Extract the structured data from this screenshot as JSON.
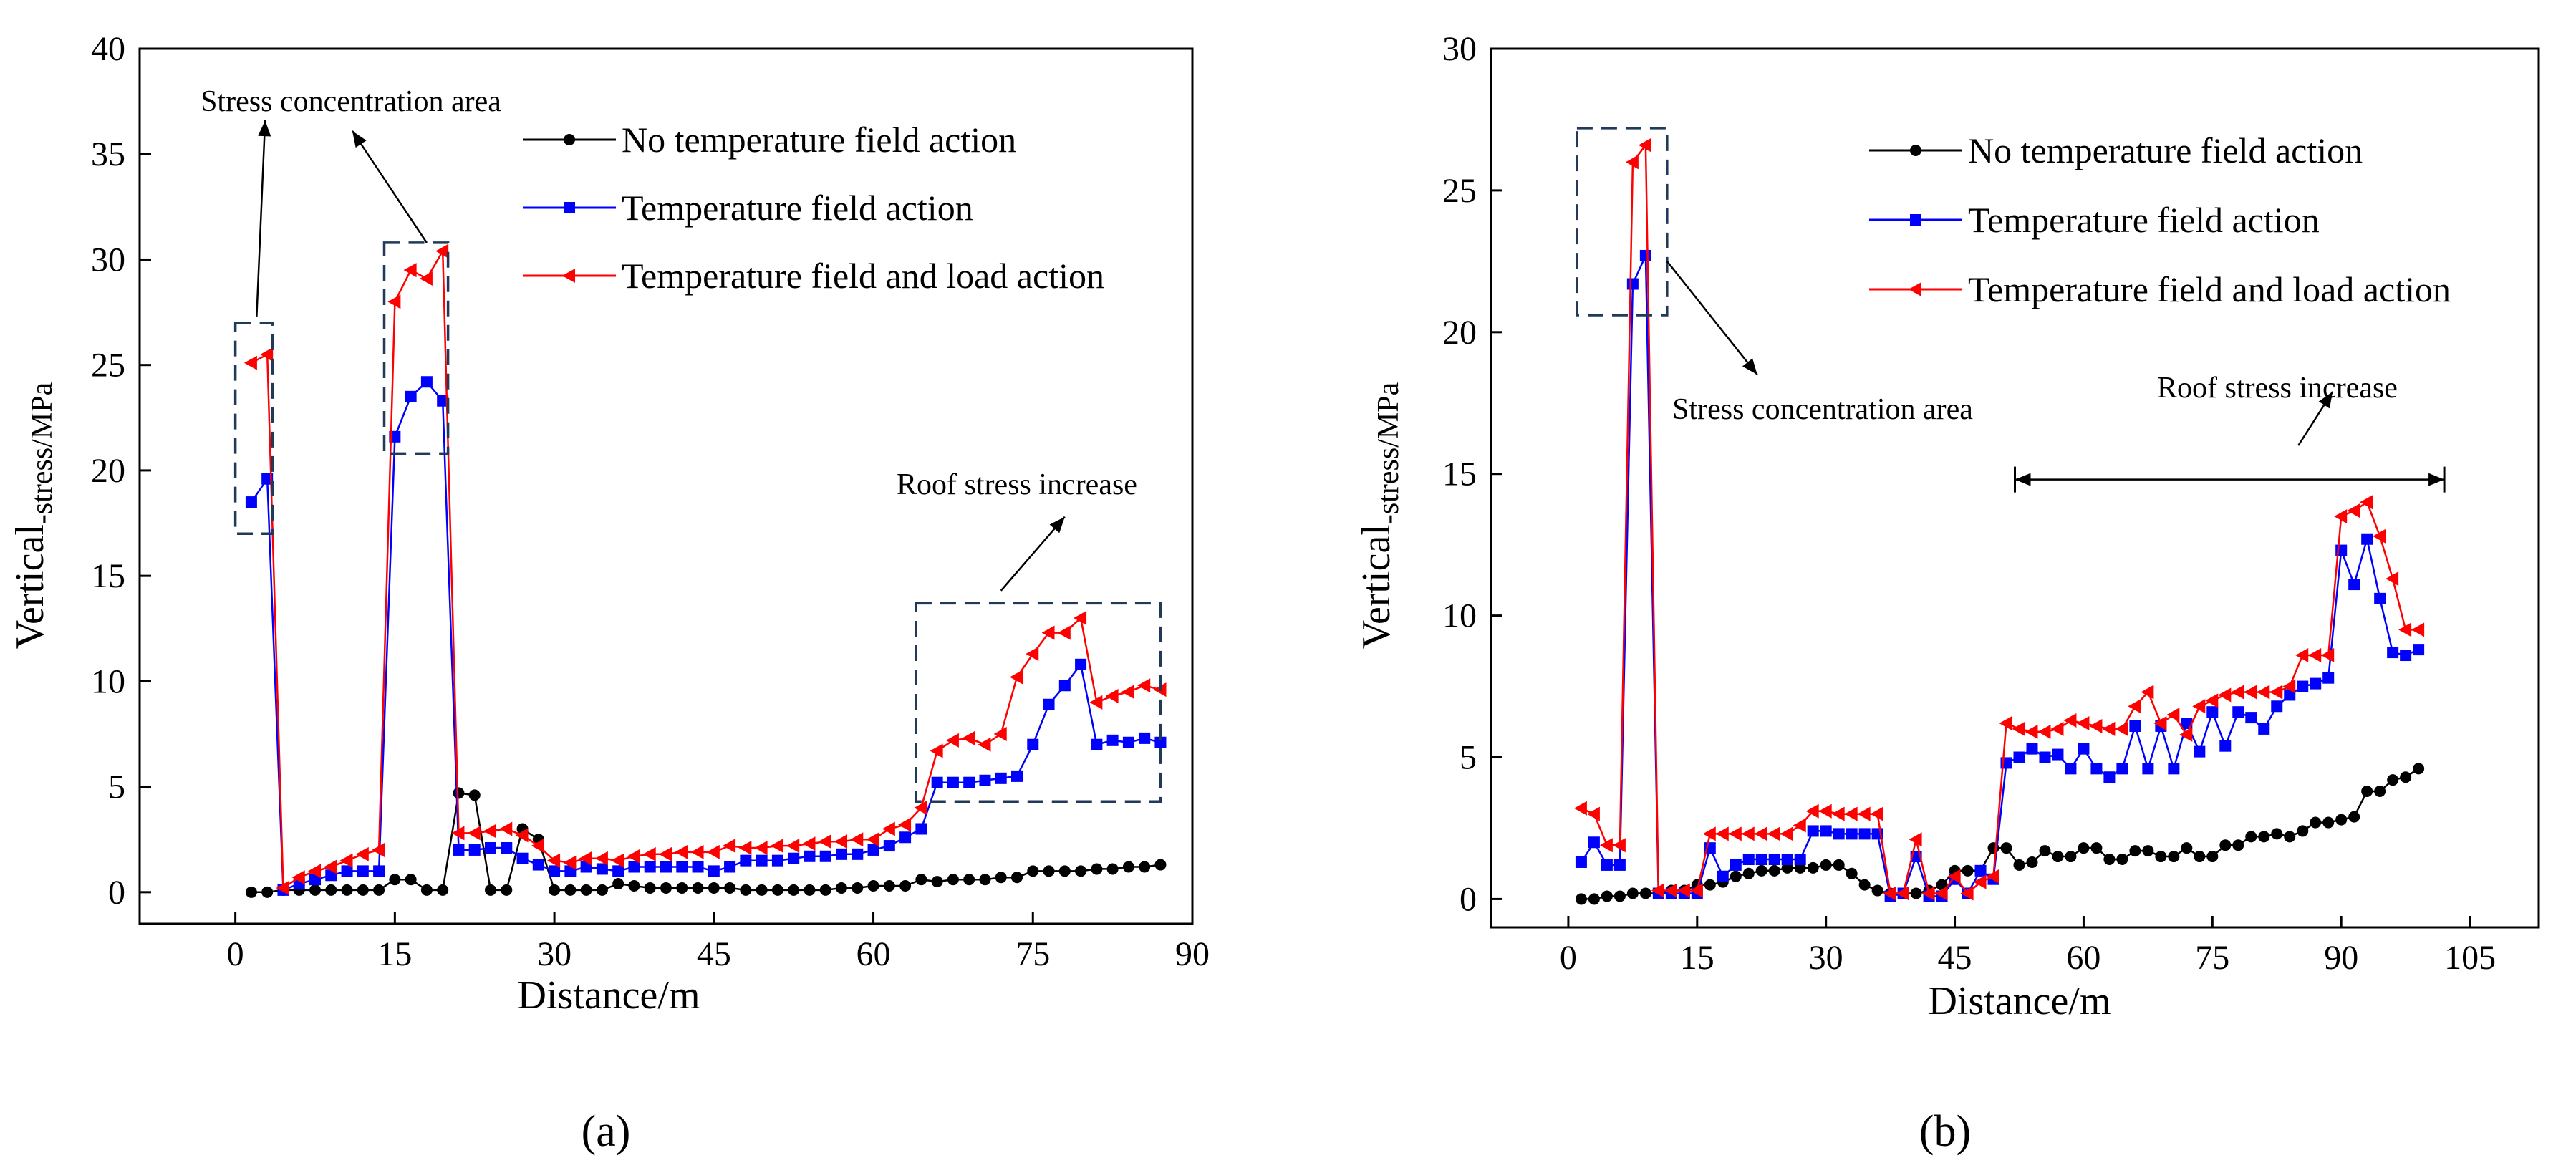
{
  "chart_data": [
    {
      "type": "line",
      "panel_label": "(a)",
      "xlabel": "Distance/m",
      "ylabel_main": "Vertical",
      "ylabel_sub": "-stress/MPa",
      "xlim": [
        -9,
        90
      ],
      "ylim": [
        -1.5,
        40
      ],
      "xticks": [
        0,
        15,
        30,
        45,
        60,
        75,
        90
      ],
      "yticks": [
        0,
        5,
        10,
        15,
        20,
        25,
        30,
        35,
        40
      ],
      "legend": [
        "No temperature field action",
        "Temperature field action",
        "Temperature field and load action"
      ],
      "series": [
        {
          "name": "No temperature field action",
          "color": "#000000",
          "marker": "circle",
          "x": [
            1.5,
            3,
            4.5,
            6,
            7.5,
            9,
            10.5,
            12,
            13.5,
            15,
            16.5,
            18,
            19.5,
            21,
            22.5,
            24,
            25.5,
            27,
            28.5,
            30,
            31.5,
            33,
            34.5,
            36,
            37.5,
            39,
            40.5,
            42,
            43.5,
            45,
            46.5,
            48,
            49.5,
            51,
            52.5,
            54,
            55.5,
            57,
            58.5,
            60,
            61.5,
            63,
            64.5,
            66,
            67.5,
            69,
            70.5,
            72,
            73.5,
            75,
            76.5,
            78,
            79.5,
            81,
            82.5,
            84,
            85.5,
            87
          ],
          "y": [
            0,
            0,
            0.1,
            0.1,
            0.1,
            0.1,
            0.1,
            0.1,
            0.1,
            0.6,
            0.6,
            0.1,
            0.1,
            4.7,
            4.6,
            0.1,
            0.1,
            3,
            2.5,
            0.1,
            0.1,
            0.1,
            0.1,
            0.4,
            0.3,
            0.2,
            0.2,
            0.2,
            0.2,
            0.2,
            0.2,
            0.1,
            0.1,
            0.1,
            0.1,
            0.1,
            0.1,
            0.2,
            0.2,
            0.3,
            0.3,
            0.3,
            0.6,
            0.5,
            0.6,
            0.6,
            0.6,
            0.7,
            0.7,
            1,
            1,
            1,
            1,
            1.1,
            1.1,
            1.2,
            1.2,
            1.3
          ]
        },
        {
          "name": "Temperature field action",
          "color": "#0000ff",
          "marker": "square",
          "x": [
            1.5,
            3,
            4.5,
            6,
            7.5,
            9,
            10.5,
            12,
            13.5,
            15,
            16.5,
            18,
            19.5,
            21,
            22.5,
            24,
            25.5,
            27,
            28.5,
            30,
            31.5,
            33,
            34.5,
            36,
            37.5,
            39,
            40.5,
            42,
            43.5,
            45,
            46.5,
            48,
            49.5,
            51,
            52.5,
            54,
            55.5,
            57,
            58.5,
            60,
            61.5,
            63,
            64.5,
            66,
            67.5,
            69,
            70.5,
            72,
            73.5,
            75,
            76.5,
            78,
            79.5,
            81,
            82.5,
            84,
            85.5,
            87
          ],
          "y": [
            18.5,
            19.6,
            0.1,
            0.4,
            0.6,
            0.8,
            1,
            1,
            1,
            21.6,
            23.5,
            24.2,
            23.3,
            2,
            2,
            2.1,
            2.1,
            1.6,
            1.3,
            1,
            1,
            1.2,
            1.1,
            1,
            1.2,
            1.2,
            1.2,
            1.2,
            1.2,
            1,
            1.2,
            1.5,
            1.5,
            1.5,
            1.6,
            1.7,
            1.7,
            1.8,
            1.8,
            2,
            2.2,
            2.6,
            3,
            5.2,
            5.2,
            5.2,
            5.3,
            5.4,
            5.5,
            7,
            8.9,
            9.8,
            10.8,
            7,
            7.2,
            7.1,
            7.3,
            7.1
          ]
        },
        {
          "name": "Temperature field and load action",
          "color": "#ff0000",
          "marker": "triangle-left",
          "x": [
            1.5,
            3,
            4.5,
            6,
            7.5,
            9,
            10.5,
            12,
            13.5,
            15,
            16.5,
            18,
            19.5,
            21,
            22.5,
            24,
            25.5,
            27,
            28.5,
            30,
            31.5,
            33,
            34.5,
            36,
            37.5,
            39,
            40.5,
            42,
            43.5,
            45,
            46.5,
            48,
            49.5,
            51,
            52.5,
            54,
            55.5,
            57,
            58.5,
            60,
            61.5,
            63,
            64.5,
            66,
            67.5,
            69,
            70.5,
            72,
            73.5,
            75,
            76.5,
            78,
            79.5,
            81,
            82.5,
            84,
            85.5,
            87
          ],
          "y": [
            25.1,
            25.5,
            0.2,
            0.7,
            1,
            1.2,
            1.5,
            1.8,
            2,
            28,
            29.5,
            29.1,
            30.4,
            2.8,
            2.8,
            2.9,
            3,
            2.7,
            2.2,
            1.5,
            1.4,
            1.6,
            1.6,
            1.5,
            1.7,
            1.8,
            1.8,
            1.9,
            1.9,
            1.9,
            2.2,
            2.1,
            2.1,
            2.2,
            2.2,
            2.3,
            2.4,
            2.4,
            2.5,
            2.5,
            3,
            3.2,
            4,
            6.7,
            7.2,
            7.3,
            7,
            7.5,
            10.2,
            11.3,
            12.3,
            12.3,
            13,
            9,
            9.3,
            9.5,
            9.8,
            9.6
          ]
        }
      ],
      "annotations": [
        {
          "text": "Stress concentration area",
          "target": "region near x 1-4 m and x 15-20 m"
        },
        {
          "text": "Roof stress increase",
          "target": "region x 65-87 m"
        }
      ]
    },
    {
      "type": "line",
      "panel_label": "(b)",
      "xlabel": "Distance/m",
      "ylabel_main": "Vertical",
      "ylabel_sub": "-stress/MPa",
      "xlim": [
        -9,
        113
      ],
      "ylim": [
        -1,
        30
      ],
      "xticks": [
        0,
        15,
        30,
        45,
        60,
        75,
        90,
        105
      ],
      "yticks": [
        0,
        5,
        10,
        15,
        20,
        25,
        30
      ],
      "legend": [
        "No temperature field action",
        "Temperature field action",
        "Temperature field and load action"
      ],
      "series": [
        {
          "name": "No temperature field action",
          "color": "#000000",
          "marker": "circle",
          "x": [
            1.5,
            3,
            4.5,
            6,
            7.5,
            9,
            10.5,
            12,
            13.5,
            15,
            16.5,
            18,
            19.5,
            21,
            22.5,
            24,
            25.5,
            27,
            28.5,
            30,
            31.5,
            33,
            34.5,
            36,
            37.5,
            39,
            40.5,
            42,
            43.5,
            45,
            46.5,
            48,
            49.5,
            51,
            52.5,
            54,
            55.5,
            57,
            58.5,
            60,
            61.5,
            63,
            64.5,
            66,
            67.5,
            69,
            70.5,
            72,
            73.5,
            75,
            76.5,
            78,
            79.5,
            81,
            82.5,
            84,
            85.5,
            87,
            88.5,
            90,
            91.5,
            93,
            94.5,
            96,
            97.5,
            99
          ],
          "y": [
            0,
            0,
            0.1,
            0.1,
            0.2,
            0.2,
            0.2,
            0.3,
            0.3,
            0.5,
            0.5,
            0.6,
            0.8,
            0.9,
            1,
            1,
            1.1,
            1.1,
            1.1,
            1.2,
            1.2,
            0.9,
            0.5,
            0.3,
            0.2,
            0.2,
            0.2,
            0.3,
            0.5,
            1,
            1,
            1,
            1.8,
            1.8,
            1.2,
            1.3,
            1.7,
            1.5,
            1.5,
            1.8,
            1.8,
            1.4,
            1.4,
            1.7,
            1.7,
            1.5,
            1.5,
            1.8,
            1.5,
            1.5,
            1.9,
            1.9,
            2.2,
            2.2,
            2.3,
            2.2,
            2.4,
            2.7,
            2.7,
            2.8,
            2.9,
            3.8,
            3.8,
            4.2,
            4.3,
            4.6
          ]
        },
        {
          "name": "Temperature field action",
          "color": "#0000ff",
          "marker": "square",
          "x": [
            1.5,
            3,
            4.5,
            6,
            7.5,
            9,
            10.5,
            12,
            13.5,
            15,
            16.5,
            18,
            19.5,
            21,
            22.5,
            24,
            25.5,
            27,
            28.5,
            30,
            31.5,
            33,
            34.5,
            36,
            37.5,
            39,
            40.5,
            42,
            43.5,
            45,
            46.5,
            48,
            49.5,
            51,
            52.5,
            54,
            55.5,
            57,
            58.5,
            60,
            61.5,
            63,
            64.5,
            66,
            67.5,
            69,
            70.5,
            72,
            73.5,
            75,
            76.5,
            78,
            79.5,
            81,
            82.5,
            84,
            85.5,
            87,
            88.5,
            90,
            91.5,
            93,
            94.5,
            96,
            97.5,
            99
          ],
          "y": [
            1.3,
            2,
            1.2,
            1.2,
            21.7,
            22.7,
            0.2,
            0.2,
            0.2,
            0.2,
            1.8,
            0.8,
            1.2,
            1.4,
            1.4,
            1.4,
            1.4,
            1.4,
            2.4,
            2.4,
            2.3,
            2.3,
            2.3,
            2.3,
            0.1,
            0.2,
            1.5,
            0.1,
            0.1,
            0.7,
            0.2,
            1,
            0.7,
            4.8,
            5,
            5.3,
            5,
            5.1,
            4.6,
            5.3,
            4.6,
            4.3,
            4.6,
            6.1,
            4.6,
            6.1,
            4.6,
            6.2,
            5.2,
            6.6,
            5.4,
            6.6,
            6.4,
            6,
            6.8,
            7.2,
            7.5,
            7.6,
            7.8,
            12.3,
            11.1,
            12.7,
            10.6,
            8.7,
            8.6,
            8.8
          ]
        },
        {
          "name": "Temperature field and load action",
          "color": "#ff0000",
          "marker": "triangle-left",
          "x": [
            1.5,
            3,
            4.5,
            6,
            7.5,
            9,
            10.5,
            12,
            13.5,
            15,
            16.5,
            18,
            19.5,
            21,
            22.5,
            24,
            25.5,
            27,
            28.5,
            30,
            31.5,
            33,
            34.5,
            36,
            37.5,
            39,
            40.5,
            42,
            43.5,
            45,
            46.5,
            48,
            49.5,
            51,
            52.5,
            54,
            55.5,
            57,
            58.5,
            60,
            61.5,
            63,
            64.5,
            66,
            67.5,
            69,
            70.5,
            72,
            73.5,
            75,
            76.5,
            78,
            79.5,
            81,
            82.5,
            84,
            85.5,
            87,
            88.5,
            90,
            91.5,
            93,
            94.5,
            96,
            97.5,
            99
          ],
          "y": [
            3.2,
            3,
            1.9,
            1.9,
            26,
            26.6,
            0.3,
            0.3,
            0.3,
            0.3,
            2.3,
            2.3,
            2.3,
            2.3,
            2.3,
            2.3,
            2.3,
            2.6,
            3.1,
            3.1,
            3,
            3,
            3,
            3,
            0.2,
            0.2,
            2.1,
            0.2,
            0.2,
            0.8,
            0.2,
            0.6,
            0.8,
            6.2,
            6,
            5.9,
            5.9,
            6,
            6.3,
            6.2,
            6.1,
            6,
            6,
            6.8,
            7.3,
            6.2,
            6.5,
            5.8,
            6.8,
            7,
            7.2,
            7.3,
            7.3,
            7.3,
            7.3,
            7.5,
            8.6,
            8.6,
            8.6,
            13.5,
            13.7,
            14,
            12.8,
            11.3,
            9.5,
            9.5
          ]
        }
      ],
      "annotations": [
        {
          "text": "Stress concentration area",
          "target": "region near x 7-9 m"
        },
        {
          "text": "Roof stress increase",
          "target": "span x 52-102 m"
        }
      ]
    }
  ]
}
